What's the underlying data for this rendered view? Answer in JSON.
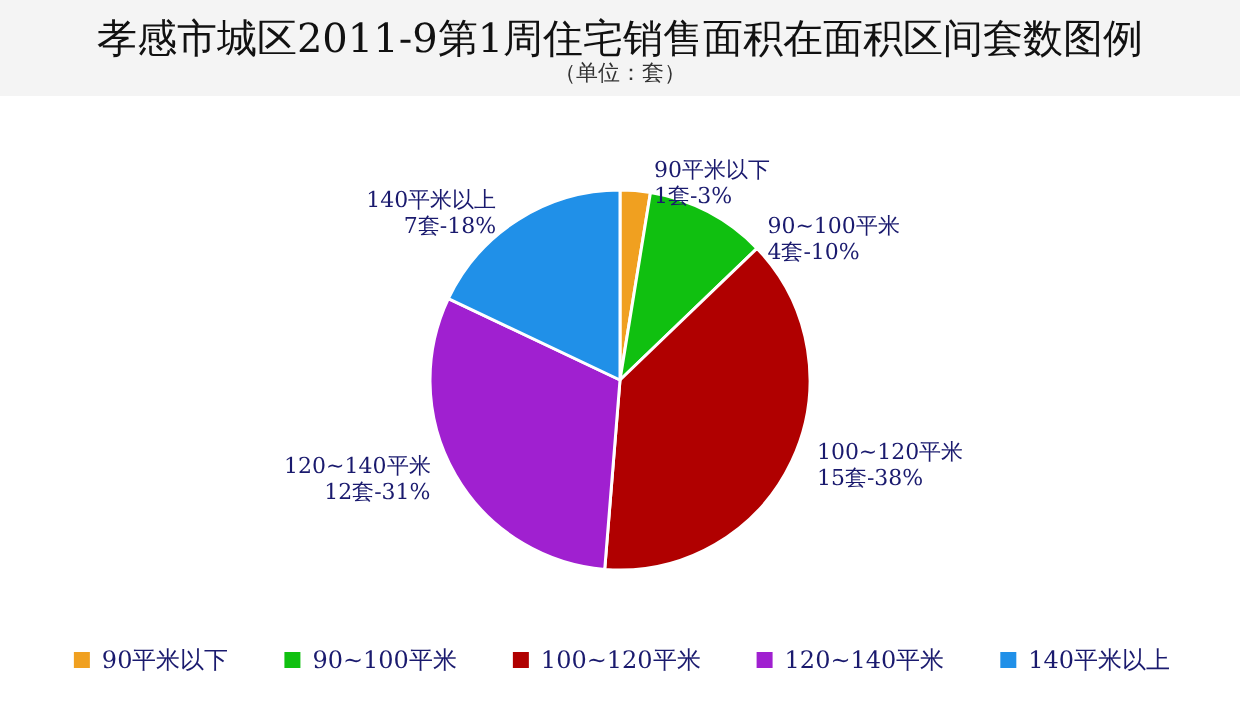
{
  "chart_data": {
    "type": "pie",
    "title": "孝感市城区2011-9第1周住宅销售面积在面积区间套数图例",
    "subtitle": "（单位：套）",
    "categories": [
      "90平米以下",
      "90~100平米",
      "100~120平米",
      "120~140平米",
      "140平米以上"
    ],
    "values": [
      1,
      4,
      15,
      12,
      7
    ],
    "value_labels": [
      "1套-3%",
      "4套-10%",
      "15套-38%",
      "12套-31%",
      "7套-18%"
    ],
    "colors": [
      "#f0a020",
      "#10c010",
      "#b00000",
      "#a020d0",
      "#2090e8"
    ],
    "legend": "bottom"
  }
}
